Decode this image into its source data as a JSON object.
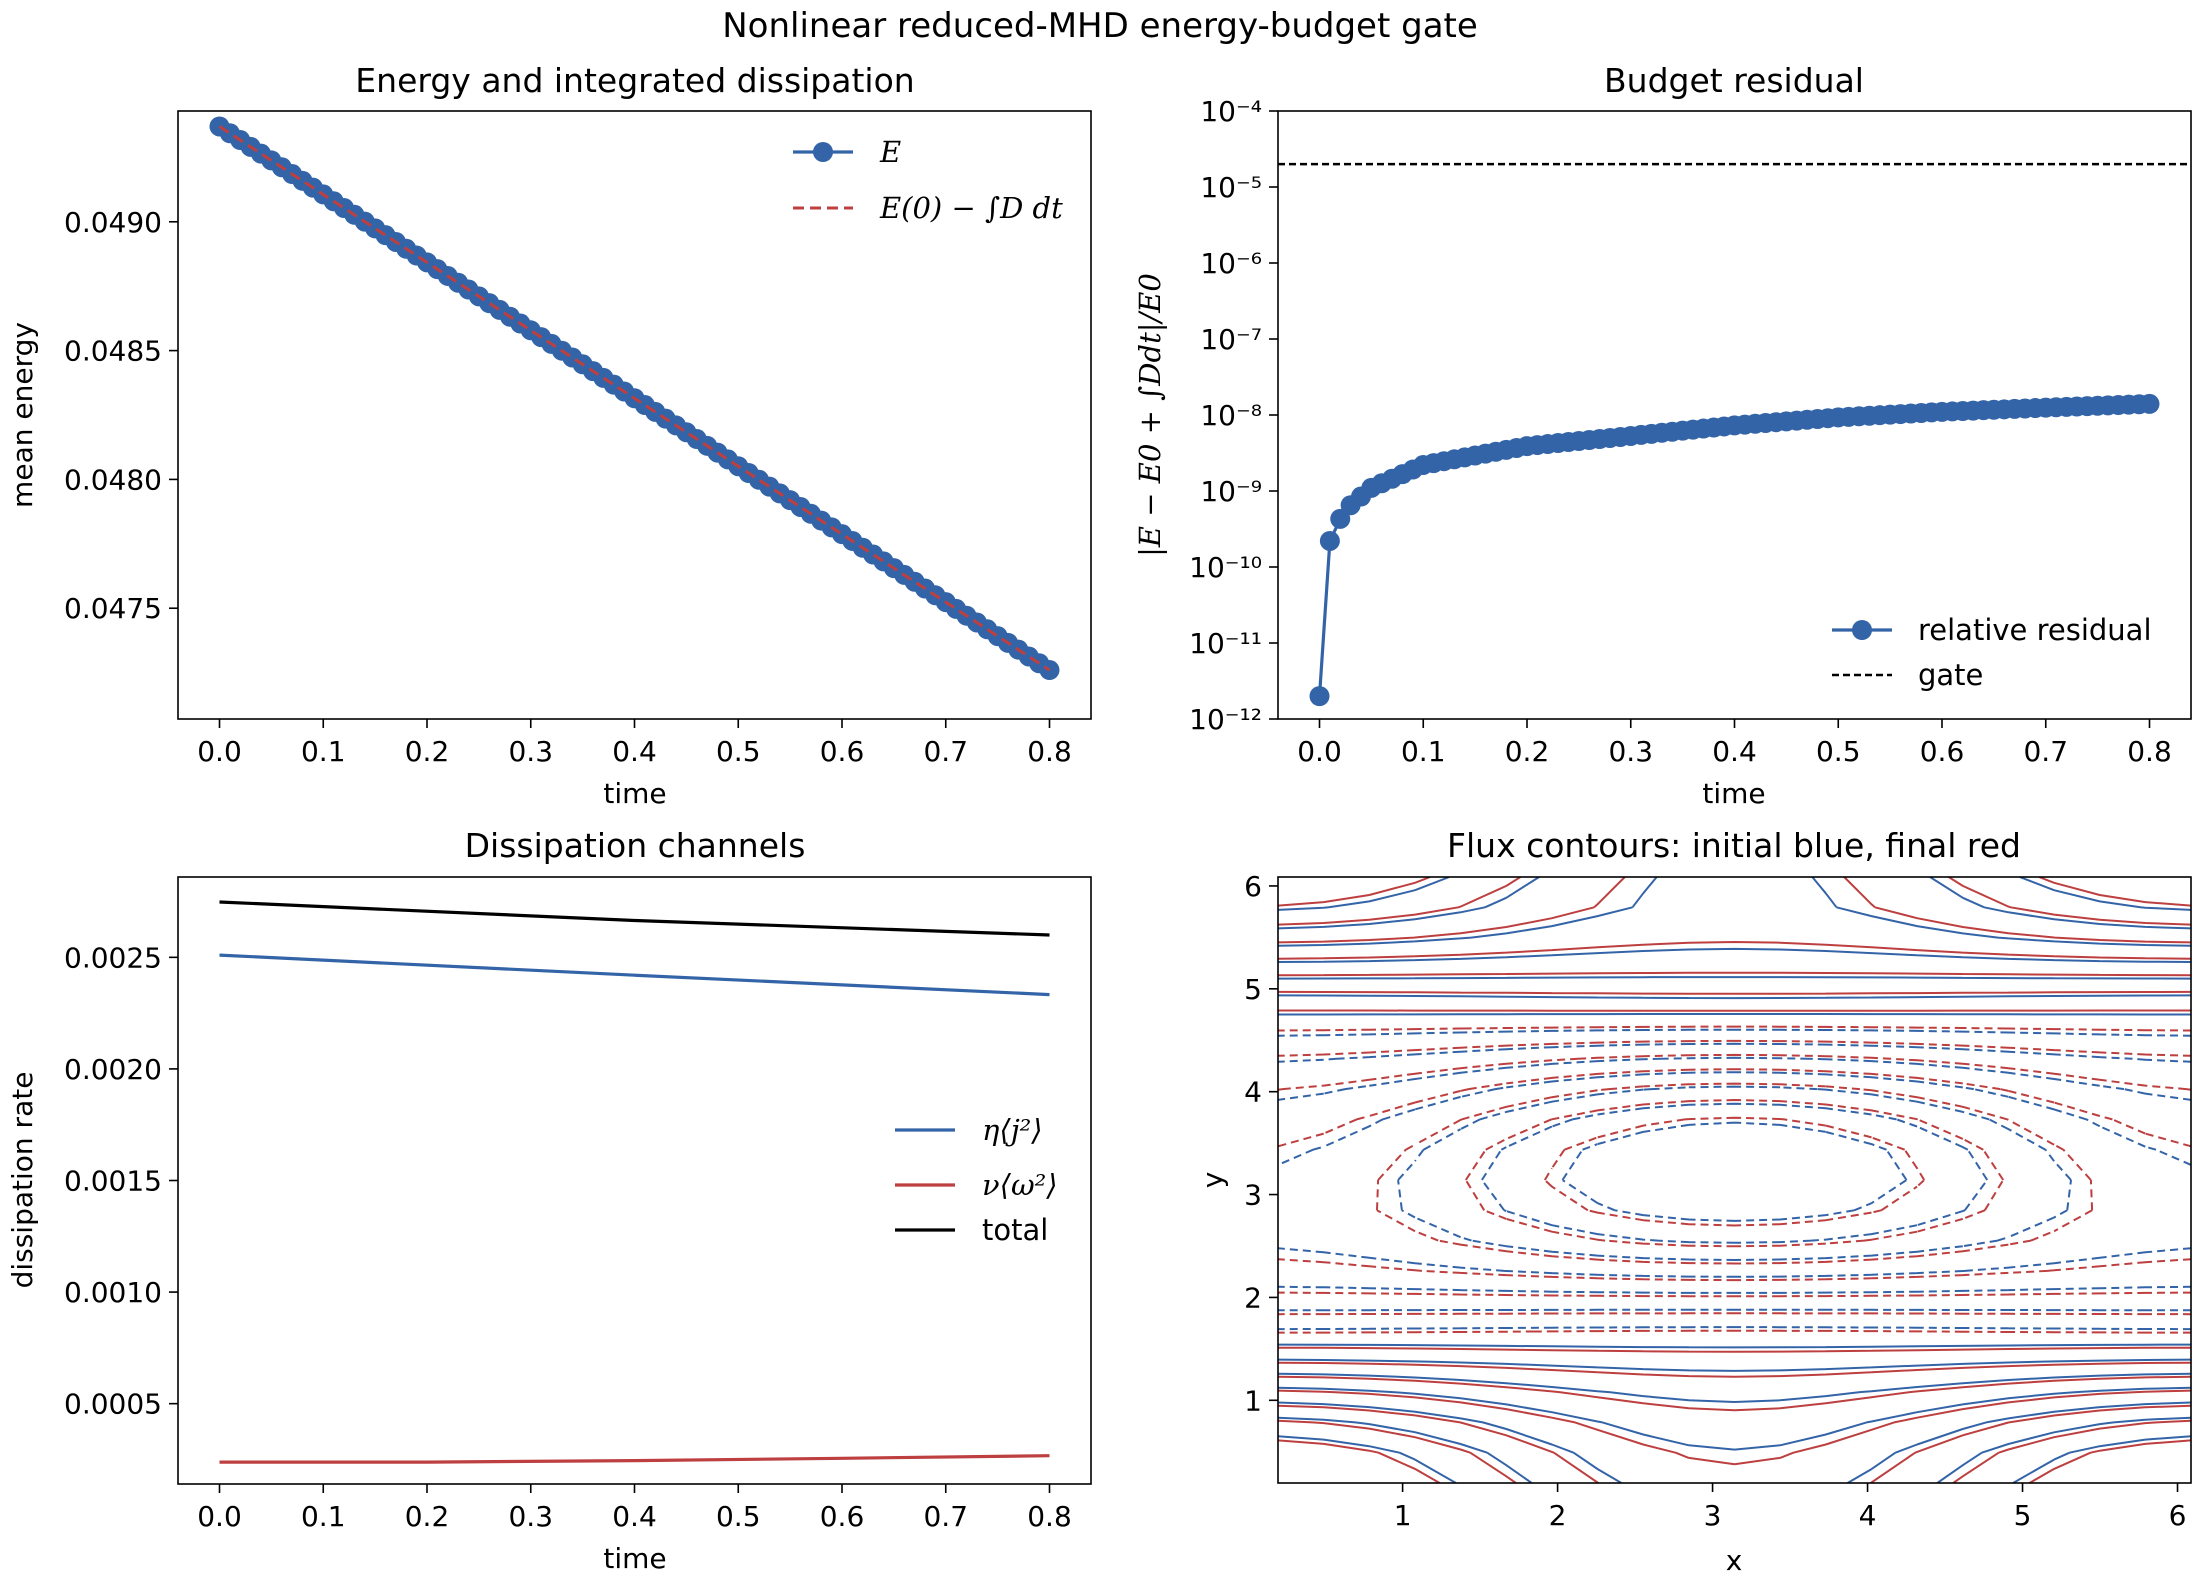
{
  "figure": {
    "suptitle": "Nonlinear reduced-MHD energy-budget gate",
    "colors": {
      "blue": "#3464a8",
      "red": "#bd3f3f",
      "black": "#000000"
    }
  },
  "chart_data": [
    {
      "type": "line",
      "title": "Energy and integrated dissipation",
      "xlabel": "time",
      "ylabel": "mean energy",
      "xlim": [
        -0.04,
        0.84
      ],
      "ylim": [
        0.04707,
        0.04943
      ],
      "xticks": [
        "0.0",
        "0.1",
        "0.2",
        "0.3",
        "0.4",
        "0.5",
        "0.6",
        "0.7",
        "0.8"
      ],
      "yticks": [
        "0.0475",
        "0.0480",
        "0.0485",
        "0.0490"
      ],
      "legend_position": "upper right",
      "series": [
        {
          "name": "E",
          "style": "line-with-circle-markers",
          "color": "#3464a8",
          "x_start": 0.0,
          "x_end": 0.8,
          "n_points": 81,
          "y_start": 0.04937,
          "y_end": 0.04726
        },
        {
          "name": "E(0) − ∫D dt",
          "style": "dashed",
          "color": "#bd3f3f",
          "x_start": 0.0,
          "x_end": 0.8,
          "y_start": 0.04937,
          "y_end": 0.04726
        }
      ]
    },
    {
      "type": "line",
      "title": "Budget residual",
      "xlabel": "time",
      "ylabel": "|E − E0 + ∫Ddt|/E0",
      "yscale": "log",
      "xlim": [
        -0.04,
        0.84
      ],
      "ylim": [
        1e-12,
        0.0001
      ],
      "xticks": [
        "0.0",
        "0.1",
        "0.2",
        "0.3",
        "0.4",
        "0.5",
        "0.6",
        "0.7",
        "0.8"
      ],
      "yticks": [
        "10⁻¹²",
        "10⁻¹¹",
        "10⁻¹⁰",
        "10⁻⁹",
        "10⁻⁸",
        "10⁻⁷",
        "10⁻⁶",
        "10⁻⁵",
        "10⁻⁴"
      ],
      "legend_position": "lower right",
      "series": [
        {
          "name": "relative residual",
          "style": "line-with-circle-markers",
          "color": "#3464a8",
          "points": [
            [
              0.0,
              2e-12
            ],
            [
              0.01,
              2.2e-10
            ],
            [
              0.02,
              4.3e-10
            ],
            [
              0.03,
              6.5e-10
            ],
            [
              0.05,
              1.1e-09
            ],
            [
              0.1,
              2.2e-09
            ],
            [
              0.2,
              3.9e-09
            ],
            [
              0.3,
              5.3e-09
            ],
            [
              0.4,
              7.3e-09
            ],
            [
              0.5,
              9.3e-09
            ],
            [
              0.6,
              1.1e-08
            ],
            [
              0.7,
              1.25e-08
            ],
            [
              0.8,
              1.4e-08
            ]
          ],
          "n_points": 81
        },
        {
          "name": "gate",
          "style": "dashed",
          "color": "#000000",
          "y": 2e-05
        }
      ]
    },
    {
      "type": "line",
      "title": "Dissipation channels",
      "xlabel": "time",
      "ylabel": "dissipation rate",
      "xlim": [
        -0.04,
        0.84
      ],
      "ylim": [
        0.00014,
        0.00286
      ],
      "xticks": [
        "0.0",
        "0.1",
        "0.2",
        "0.3",
        "0.4",
        "0.5",
        "0.6",
        "0.7",
        "0.8"
      ],
      "yticks": [
        "0.0005",
        "0.0010",
        "0.0015",
        "0.0020",
        "0.0025"
      ],
      "legend_position": "center right",
      "series": [
        {
          "name": "η⟨j²⟩",
          "color": "#3464a8",
          "x": [
            0.0,
            0.4,
            0.8
          ],
          "y": [
            0.00251,
            0.00242,
            0.002333
          ]
        },
        {
          "name": "ν⟨ω²⟩",
          "color": "#bd3f3f",
          "x": [
            0.0,
            0.2,
            0.4,
            0.6,
            0.8
          ],
          "y": [
            0.000238,
            0.000238,
            0.000245,
            0.000255,
            0.000267
          ]
        },
        {
          "name": "total",
          "color": "#000000",
          "x": [
            0.0,
            0.4,
            0.8
          ],
          "y": [
            0.002748,
            0.002665,
            0.0026
          ]
        }
      ]
    },
    {
      "type": "contour",
      "title": "Flux contours: initial blue, final red",
      "xlabel": "x",
      "ylabel": "y",
      "xlim": [
        0.196,
        6.087
      ],
      "ylim": [
        0.196,
        6.087
      ],
      "xticks": [
        "1",
        "2",
        "3",
        "4",
        "5",
        "6"
      ],
      "yticks": [
        "1",
        "2",
        "3",
        "4",
        "5",
        "6"
      ],
      "series": [
        {
          "name": "initial",
          "color": "#3464a8"
        },
        {
          "name": "final",
          "color": "#bd3f3f"
        }
      ]
    }
  ]
}
